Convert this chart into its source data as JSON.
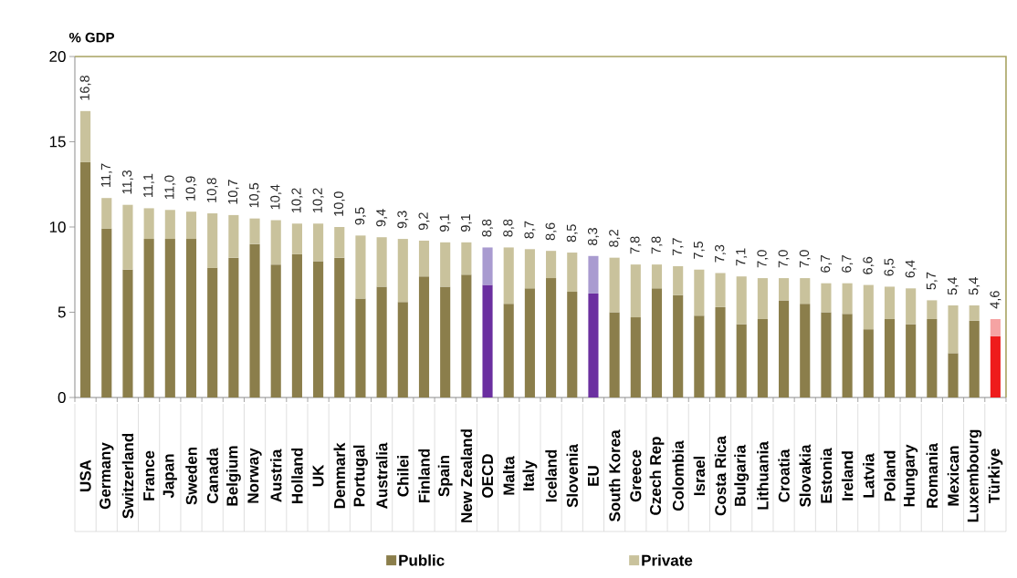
{
  "chart_data": {
    "type": "bar",
    "stacked": true,
    "ylabel": "% GDP",
    "categories": [
      "USA",
      "Germany",
      "Switzerland",
      "France",
      "Japan",
      "Sweden",
      "Canada",
      "Belgium",
      "Norway",
      "Austria",
      "Holland",
      "UK",
      "Denmark",
      "Portugal",
      "Australia",
      "Chilei",
      "Finland",
      "Spain",
      "New Zealand",
      "OECD",
      "Malta",
      "Italy",
      "Iceland",
      "Slovenia",
      "EU",
      "South Korea",
      "Greece",
      "Czech Rep",
      "Colombia",
      "Israel",
      "Costa Rica",
      "Bulgaria",
      "Lithuania",
      "Croatia",
      "Slovakia",
      "Estonia",
      "Ireland",
      "Latvia",
      "Poland",
      "Hungary",
      "Romania",
      "Mexican",
      "Luxembourg",
      "Türkiye"
    ],
    "series": [
      {
        "name": "Public",
        "color": "#8b7e4b",
        "colors": [
          "#8b7e4b",
          "#8b7e4b",
          "#8b7e4b",
          "#8b7e4b",
          "#8b7e4b",
          "#8b7e4b",
          "#8b7e4b",
          "#8b7e4b",
          "#8b7e4b",
          "#8b7e4b",
          "#8b7e4b",
          "#8b7e4b",
          "#8b7e4b",
          "#8b7e4b",
          "#8b7e4b",
          "#8b7e4b",
          "#8b7e4b",
          "#8b7e4b",
          "#8b7e4b",
          "#6b2fa0",
          "#8b7e4b",
          "#8b7e4b",
          "#8b7e4b",
          "#8b7e4b",
          "#6b2fa0",
          "#8b7e4b",
          "#8b7e4b",
          "#8b7e4b",
          "#8b7e4b",
          "#8b7e4b",
          "#8b7e4b",
          "#8b7e4b",
          "#8b7e4b",
          "#8b7e4b",
          "#8b7e4b",
          "#8b7e4b",
          "#8b7e4b",
          "#8b7e4b",
          "#8b7e4b",
          "#8b7e4b",
          "#8b7e4b",
          "#8b7e4b",
          "#8b7e4b",
          "#ee1c1c"
        ],
        "values": [
          13.8,
          9.9,
          7.5,
          9.3,
          9.3,
          9.3,
          7.6,
          8.2,
          9.0,
          7.8,
          8.4,
          8.0,
          8.2,
          5.8,
          6.5,
          5.6,
          7.1,
          6.5,
          7.2,
          6.6,
          5.5,
          6.4,
          7.0,
          6.2,
          6.1,
          5.0,
          4.7,
          6.4,
          6.0,
          4.8,
          5.3,
          4.3,
          4.6,
          5.7,
          5.5,
          5.0,
          4.9,
          4.0,
          4.6,
          4.3,
          4.6,
          2.6,
          4.5,
          3.6
        ]
      },
      {
        "name": "Private",
        "color": "#c9c29c",
        "colors": [
          "#c9c29c",
          "#c9c29c",
          "#c9c29c",
          "#c9c29c",
          "#c9c29c",
          "#c9c29c",
          "#c9c29c",
          "#c9c29c",
          "#c9c29c",
          "#c9c29c",
          "#c9c29c",
          "#c9c29c",
          "#c9c29c",
          "#c9c29c",
          "#c9c29c",
          "#c9c29c",
          "#c9c29c",
          "#c9c29c",
          "#c9c29c",
          "#a99bd0",
          "#c9c29c",
          "#c9c29c",
          "#c9c29c",
          "#c9c29c",
          "#a99bd0",
          "#c9c29c",
          "#c9c29c",
          "#c9c29c",
          "#c9c29c",
          "#c9c29c",
          "#c9c29c",
          "#c9c29c",
          "#c9c29c",
          "#c9c29c",
          "#c9c29c",
          "#c9c29c",
          "#c9c29c",
          "#c9c29c",
          "#c9c29c",
          "#c9c29c",
          "#c9c29c",
          "#c9c29c",
          "#c9c29c",
          "#f5a3a3"
        ],
        "values": [
          3.0,
          1.8,
          3.8,
          1.8,
          1.7,
          1.6,
          3.2,
          2.5,
          1.5,
          2.6,
          1.8,
          2.2,
          1.8,
          3.7,
          2.9,
          3.7,
          2.1,
          2.6,
          1.9,
          2.2,
          3.3,
          2.3,
          1.6,
          2.3,
          2.2,
          3.2,
          3.1,
          1.4,
          1.7,
          2.7,
          2.0,
          2.8,
          2.4,
          1.3,
          1.5,
          1.7,
          1.8,
          2.6,
          1.9,
          2.1,
          1.1,
          2.8,
          0.9,
          1.0
        ]
      }
    ],
    "totals": [
      "16,8",
      "11,7",
      "11,3",
      "11,1",
      "11,0",
      "10,9",
      "10,8",
      "10,7",
      "10,5",
      "10,4",
      "10,2",
      "10,2",
      "10,0",
      "9,5",
      "9,4",
      "9,3",
      "9,2",
      "9,1",
      "9,1",
      "8,8",
      "8,8",
      "8,7",
      "8,6",
      "8,5",
      "8,3",
      "8,2",
      "7,8",
      "7,8",
      "7,7",
      "7,5",
      "7,3",
      "7,1",
      "7,0",
      "7,0",
      "7,0",
      "6,7",
      "6,7",
      "6,6",
      "6,5",
      "6,4",
      "5,7",
      "5,4",
      "5,4",
      "4,6"
    ],
    "ylim": [
      0,
      20
    ],
    "yticks": [
      0,
      5,
      10,
      15,
      20
    ],
    "legend": "bottom"
  }
}
